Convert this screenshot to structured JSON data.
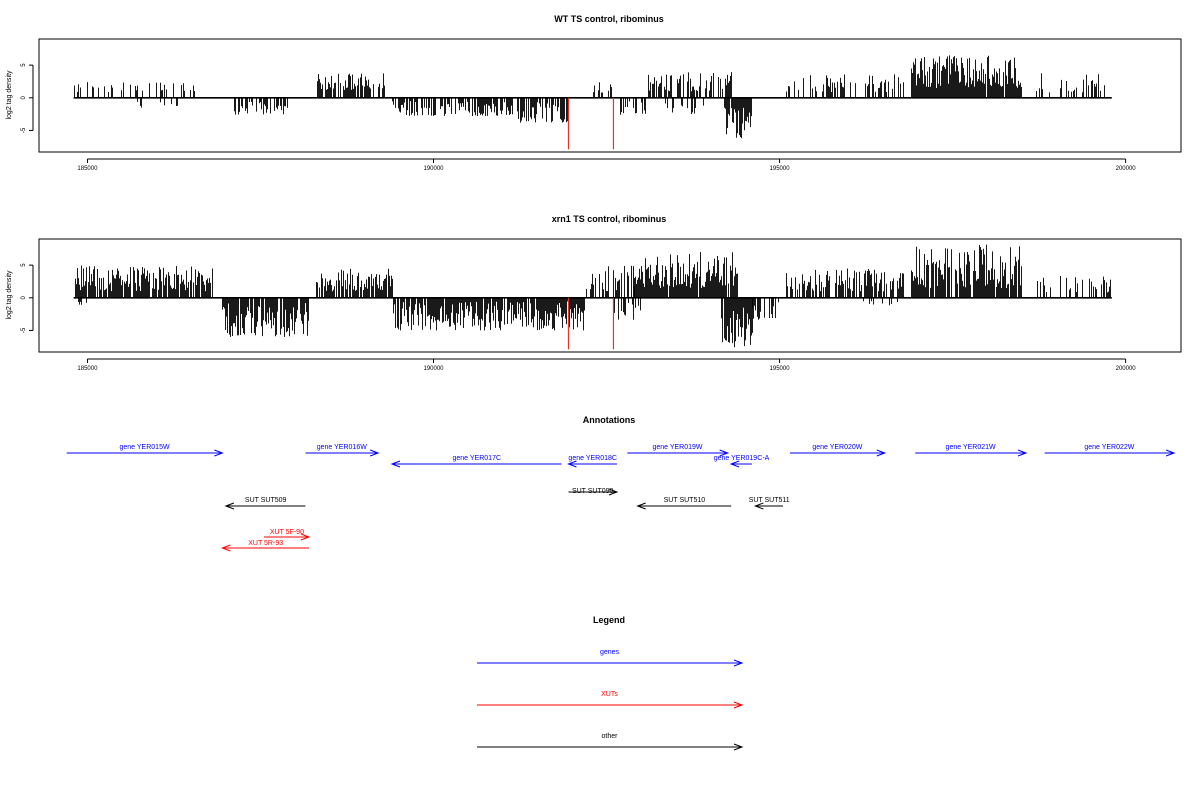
{
  "chart_data": [
    {
      "type": "bar",
      "title": "WT TS control, ribominus",
      "ylabel": "log2 tag density",
      "xlabel": "",
      "xlim": [
        184300,
        200800
      ],
      "ylim": [
        -8.3,
        9
      ],
      "grid": false,
      "xticks": [
        185000,
        190000,
        195000,
        200000
      ],
      "yticks": [
        -5,
        0,
        5
      ],
      "x_start": 184800,
      "x_end": 199800,
      "markers": {
        "color": "#e8322d",
        "x": [
          191950,
          192600
        ],
        "y_min": -7.9
      },
      "segments": [
        {
          "start": 184800,
          "end": 186600,
          "min": 0.8,
          "max": 2.5,
          "density": 0.25
        },
        {
          "start": 185700,
          "end": 186300,
          "min": -1.5,
          "max": -0.6,
          "density": 0.15
        },
        {
          "start": 187100,
          "end": 187900,
          "min": -2.6,
          "max": -0.6,
          "density": 0.55
        },
        {
          "start": 188300,
          "end": 189300,
          "min": 1.2,
          "max": 3.8,
          "density": 0.7
        },
        {
          "start": 189400,
          "end": 191100,
          "min": -2.8,
          "max": -0.5,
          "density": 0.65
        },
        {
          "start": 191100,
          "end": 191950,
          "min": -3.8,
          "max": -0.6,
          "density": 0.6
        },
        {
          "start": 192300,
          "end": 192600,
          "min": 0.8,
          "max": 2.8,
          "density": 0.4
        },
        {
          "start": 192700,
          "end": 193100,
          "min": -2.6,
          "max": -0.5,
          "density": 0.4
        },
        {
          "start": 193100,
          "end": 194300,
          "min": 1.0,
          "max": 4.0,
          "density": 0.7
        },
        {
          "start": 193300,
          "end": 193900,
          "min": -2.5,
          "max": -0.5,
          "density": 0.3
        },
        {
          "start": 194200,
          "end": 194600,
          "min": -6.2,
          "max": -1.5,
          "density": 0.95
        },
        {
          "start": 195100,
          "end": 196800,
          "min": 0.8,
          "max": 3.6,
          "density": 0.35
        },
        {
          "start": 196900,
          "end": 198500,
          "min": 1.5,
          "max": 6.5,
          "density": 0.95
        },
        {
          "start": 198700,
          "end": 199700,
          "min": 0.8,
          "max": 3.8,
          "density": 0.3
        }
      ]
    },
    {
      "type": "bar",
      "title": "xrn1 TS control, ribominus",
      "ylabel": "log2 tag density",
      "xlabel": "",
      "xlim": [
        184300,
        200800
      ],
      "ylim": [
        -8.3,
        9
      ],
      "grid": false,
      "xticks": [
        185000,
        190000,
        195000,
        200000
      ],
      "yticks": [
        -5,
        0,
        5
      ],
      "x_start": 184800,
      "x_end": 199800,
      "markers": {
        "color": "#e8322d",
        "x": [
          191950,
          192600
        ],
        "y_min": -7.9
      },
      "segments": [
        {
          "start": 184800,
          "end": 186800,
          "min": 1.0,
          "max": 5.0,
          "density": 0.85
        },
        {
          "start": 184850,
          "end": 185000,
          "min": -1.8,
          "max": -0.6,
          "density": 0.3
        },
        {
          "start": 186950,
          "end": 188200,
          "min": -6.0,
          "max": -0.8,
          "density": 0.9
        },
        {
          "start": 188300,
          "end": 189400,
          "min": 1.0,
          "max": 4.5,
          "density": 0.85
        },
        {
          "start": 189400,
          "end": 192200,
          "min": -5.0,
          "max": -0.5,
          "density": 0.9
        },
        {
          "start": 192200,
          "end": 192900,
          "min": 1.0,
          "max": 5.0,
          "density": 0.5
        },
        {
          "start": 192600,
          "end": 193000,
          "min": -3.5,
          "max": -0.5,
          "density": 0.5
        },
        {
          "start": 192900,
          "end": 194400,
          "min": 1.5,
          "max": 7.0,
          "density": 0.95
        },
        {
          "start": 194150,
          "end": 194600,
          "min": -7.6,
          "max": -1.5,
          "density": 0.95
        },
        {
          "start": 194600,
          "end": 195000,
          "min": -3.5,
          "max": -0.5,
          "density": 0.5
        },
        {
          "start": 195100,
          "end": 196800,
          "min": 1.0,
          "max": 4.5,
          "density": 0.7
        },
        {
          "start": 196200,
          "end": 196700,
          "min": -1.2,
          "max": -0.4,
          "density": 0.2
        },
        {
          "start": 196900,
          "end": 198500,
          "min": 1.5,
          "max": 8.3,
          "density": 0.95
        },
        {
          "start": 198700,
          "end": 199800,
          "min": 0.8,
          "max": 3.8,
          "density": 0.3
        }
      ]
    }
  ],
  "annotations": {
    "title": "Annotations",
    "colors": {
      "genes": "#0000ff",
      "xuts": "#ff0000",
      "other": "#000000"
    },
    "features": [
      {
        "label": "gene YER015W",
        "kind": "genes",
        "strand": "+",
        "start": 184700,
        "end": 186950
      },
      {
        "label": "gene YER016W",
        "kind": "genes",
        "strand": "+",
        "start": 188150,
        "end": 189200
      },
      {
        "label": "gene YER017C",
        "kind": "genes",
        "strand": "-",
        "start": 189400,
        "end": 191850
      },
      {
        "label": "gene YER018C",
        "kind": "genes",
        "strand": "-",
        "start": 191950,
        "end": 192650
      },
      {
        "label": "gene YER019W",
        "kind": "genes",
        "strand": "+",
        "start": 192800,
        "end": 194250
      },
      {
        "label": "gene YER019C-A",
        "kind": "genes",
        "strand": "-",
        "start": 194300,
        "end": 194600
      },
      {
        "label": "gene YER020W",
        "kind": "genes",
        "strand": "+",
        "start": 195150,
        "end": 196520
      },
      {
        "label": "gene YER021W",
        "kind": "genes",
        "strand": "+",
        "start": 196960,
        "end": 198560
      },
      {
        "label": "gene YER022W",
        "kind": "genes",
        "strand": "+",
        "start": 198830,
        "end": 200700
      },
      {
        "label": "SUT SUT509",
        "kind": "other",
        "strand": "-",
        "start": 187000,
        "end": 188150
      },
      {
        "label": "SUT SUT090",
        "kind": "other",
        "strand": "+",
        "start": 191950,
        "end": 192650
      },
      {
        "label": "SUT SUT510",
        "kind": "other",
        "strand": "-",
        "start": 192950,
        "end": 194300
      },
      {
        "label": "SUT SUT511",
        "kind": "other",
        "strand": "-",
        "start": 194650,
        "end": 195050
      },
      {
        "label": "XUT 5F-90",
        "kind": "xuts",
        "strand": "+",
        "start": 187550,
        "end": 188200
      },
      {
        "label": "XUT 5R-93",
        "kind": "xuts",
        "strand": "-",
        "start": 186950,
        "end": 188200
      }
    ]
  },
  "legend": {
    "title": "Legend",
    "items": [
      {
        "label": "genes",
        "kind": "genes"
      },
      {
        "label": "XUTs",
        "kind": "xuts"
      },
      {
        "label": "other",
        "kind": "other"
      }
    ]
  }
}
